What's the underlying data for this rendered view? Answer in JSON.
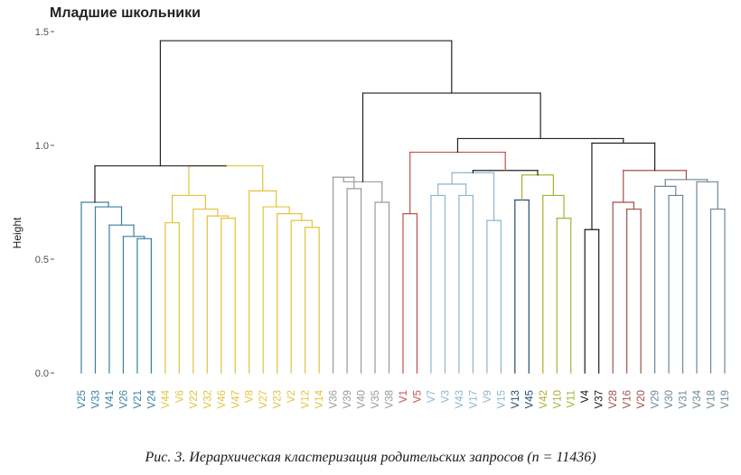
{
  "chart_data": {
    "type": "dendrogram",
    "title": "Младшие школьники",
    "ylabel": "Height",
    "ylim": [
      0,
      1.5
    ],
    "yticks": [
      "0.0",
      "0.5",
      "1.0",
      "1.5"
    ],
    "yticks_values": [
      0,
      0.5,
      1.0,
      1.5
    ],
    "colors": {
      "teal": "#3a7fa0",
      "yellow": "#e3c33b",
      "gray": "#9a9a9a",
      "red": "#c0504d",
      "light_blue": "#8fb6cf",
      "navy": "#1f4e6b",
      "olive": "#aab033",
      "black": "#1a1a1a",
      "brown_red": "#a0504a",
      "slate": "#6e8796",
      "top": "#222222"
    },
    "leaves": [
      {
        "label": "V25",
        "color": "teal"
      },
      {
        "label": "V33",
        "color": "teal"
      },
      {
        "label": "V41",
        "color": "teal"
      },
      {
        "label": "V26",
        "color": "teal"
      },
      {
        "label": "V21",
        "color": "teal"
      },
      {
        "label": "V24",
        "color": "teal"
      },
      {
        "label": "V44",
        "color": "yellow"
      },
      {
        "label": "V6",
        "color": "yellow"
      },
      {
        "label": "V22",
        "color": "yellow"
      },
      {
        "label": "V32",
        "color": "yellow"
      },
      {
        "label": "V46",
        "color": "yellow"
      },
      {
        "label": "V47",
        "color": "yellow"
      },
      {
        "label": "V8",
        "color": "yellow"
      },
      {
        "label": "V27",
        "color": "yellow"
      },
      {
        "label": "V23",
        "color": "yellow"
      },
      {
        "label": "V2",
        "color": "yellow"
      },
      {
        "label": "V12",
        "color": "yellow"
      },
      {
        "label": "V14",
        "color": "yellow"
      },
      {
        "label": "V36",
        "color": "gray"
      },
      {
        "label": "V39",
        "color": "gray"
      },
      {
        "label": "V40",
        "color": "gray"
      },
      {
        "label": "V35",
        "color": "gray"
      },
      {
        "label": "V38",
        "color": "gray"
      },
      {
        "label": "V1",
        "color": "red"
      },
      {
        "label": "V5",
        "color": "red"
      },
      {
        "label": "V7",
        "color": "light_blue"
      },
      {
        "label": "V3",
        "color": "light_blue"
      },
      {
        "label": "V43",
        "color": "light_blue"
      },
      {
        "label": "V17",
        "color": "light_blue"
      },
      {
        "label": "V9",
        "color": "light_blue"
      },
      {
        "label": "V15",
        "color": "light_blue"
      },
      {
        "label": "V13",
        "color": "navy"
      },
      {
        "label": "V45",
        "color": "navy"
      },
      {
        "label": "V42",
        "color": "olive"
      },
      {
        "label": "V10",
        "color": "olive"
      },
      {
        "label": "V11",
        "color": "olive"
      },
      {
        "label": "V4",
        "color": "black"
      },
      {
        "label": "V37",
        "color": "black"
      },
      {
        "label": "V28",
        "color": "brown_red"
      },
      {
        "label": "V16",
        "color": "brown_red"
      },
      {
        "label": "V20",
        "color": "brown_red"
      },
      {
        "label": "V29",
        "color": "slate"
      },
      {
        "label": "V30",
        "color": "slate"
      },
      {
        "label": "V31",
        "color": "slate"
      },
      {
        "label": "V34",
        "color": "slate"
      },
      {
        "label": "V18",
        "color": "slate"
      },
      {
        "label": "V19",
        "color": "slate"
      }
    ],
    "merges": [
      {
        "id": "t1",
        "left": "V21",
        "right": "V24",
        "height": 0.59,
        "color": "teal"
      },
      {
        "id": "t2",
        "left": "V26",
        "right": "t1",
        "height": 0.6,
        "color": "teal"
      },
      {
        "id": "t3",
        "left": "V41",
        "right": "t2",
        "height": 0.65,
        "color": "teal"
      },
      {
        "id": "t4",
        "left": "V33",
        "right": "t3",
        "height": 0.73,
        "color": "teal"
      },
      {
        "id": "t5",
        "left": "V25",
        "right": "t4",
        "height": 0.75,
        "color": "teal"
      },
      {
        "id": "y1",
        "left": "V44",
        "right": "V6",
        "height": 0.66,
        "color": "yellow"
      },
      {
        "id": "y2",
        "left": "V46",
        "right": "V47",
        "height": 0.68,
        "color": "yellow"
      },
      {
        "id": "y3",
        "left": "V32",
        "right": "y2",
        "height": 0.69,
        "color": "yellow"
      },
      {
        "id": "y4",
        "left": "V22",
        "right": "y3",
        "height": 0.72,
        "color": "yellow"
      },
      {
        "id": "y5",
        "left": "y1",
        "right": "y4",
        "height": 0.78,
        "color": "yellow"
      },
      {
        "id": "y6",
        "left": "V12",
        "right": "V14",
        "height": 0.64,
        "color": "yellow"
      },
      {
        "id": "y7",
        "left": "V2",
        "right": "y6",
        "height": 0.67,
        "color": "yellow"
      },
      {
        "id": "y8",
        "left": "V23",
        "right": "y7",
        "height": 0.7,
        "color": "yellow"
      },
      {
        "id": "y9",
        "left": "V27",
        "right": "y8",
        "height": 0.73,
        "color": "yellow"
      },
      {
        "id": "y10",
        "left": "V8",
        "right": "y9",
        "height": 0.8,
        "color": "yellow"
      },
      {
        "id": "y11",
        "left": "y5",
        "right": "y10",
        "height": 0.91,
        "color": "yellow"
      },
      {
        "id": "T1",
        "left": "t5",
        "right": "y11",
        "height": 0.91,
        "color": "top"
      },
      {
        "id": "g1",
        "left": "V39",
        "right": "V40",
        "height": 0.81,
        "color": "gray"
      },
      {
        "id": "g2",
        "left": "V36",
        "right": "g1",
        "height": 0.86,
        "color": "gray"
      },
      {
        "id": "g3",
        "left": "V35",
        "right": "V38",
        "height": 0.75,
        "color": "gray"
      },
      {
        "id": "g4",
        "left": "g2",
        "right": "g3",
        "height": 0.84,
        "color": "gray"
      },
      {
        "id": "r1",
        "left": "V1",
        "right": "V5",
        "height": 0.7,
        "color": "red"
      },
      {
        "id": "b1",
        "left": "V7",
        "right": "V3",
        "height": 0.78,
        "color": "light_blue"
      },
      {
        "id": "b2",
        "left": "V43",
        "right": "V17",
        "height": 0.78,
        "color": "light_blue"
      },
      {
        "id": "b3",
        "left": "V9",
        "right": "V15",
        "height": 0.67,
        "color": "light_blue"
      },
      {
        "id": "b4",
        "left": "b1",
        "right": "b2",
        "height": 0.83,
        "color": "light_blue"
      },
      {
        "id": "b5",
        "left": "b4",
        "right": "b3",
        "height": 0.88,
        "color": "light_blue"
      },
      {
        "id": "n1",
        "left": "V13",
        "right": "V45",
        "height": 0.76,
        "color": "navy"
      },
      {
        "id": "o1",
        "left": "V10",
        "right": "V11",
        "height": 0.68,
        "color": "olive"
      },
      {
        "id": "o2",
        "left": "V42",
        "right": "o1",
        "height": 0.78,
        "color": "olive"
      },
      {
        "id": "o3",
        "left": "n1",
        "right": "o2",
        "height": 0.87,
        "color": "olive"
      },
      {
        "id": "k1",
        "left": "b5",
        "right": "o3",
        "height": 0.89,
        "color": "top"
      },
      {
        "id": "k2",
        "left": "r1",
        "right": "k1",
        "height": 0.97,
        "color": "red"
      },
      {
        "id": "c1",
        "left": "V4",
        "right": "V37",
        "height": 0.63,
        "color": "black"
      },
      {
        "id": "br1",
        "left": "V16",
        "right": "V20",
        "height": 0.72,
        "color": "brown_red"
      },
      {
        "id": "br2",
        "left": "V28",
        "right": "br1",
        "height": 0.75,
        "color": "brown_red"
      },
      {
        "id": "s1",
        "left": "V30",
        "right": "V31",
        "height": 0.78,
        "color": "slate"
      },
      {
        "id": "s2",
        "left": "V29",
        "right": "s1",
        "height": 0.82,
        "color": "slate"
      },
      {
        "id": "s3",
        "left": "V18",
        "right": "V19",
        "height": 0.72,
        "color": "slate"
      },
      {
        "id": "s4",
        "left": "V34",
        "right": "s3",
        "height": 0.84,
        "color": "slate"
      },
      {
        "id": "s5",
        "left": "s2",
        "right": "s4",
        "height": 0.85,
        "color": "slate"
      },
      {
        "id": "s6",
        "left": "br2",
        "right": "s5",
        "height": 0.89,
        "color": "brown_red"
      },
      {
        "id": "K1",
        "left": "c1",
        "right": "s6",
        "height": 1.01,
        "color": "top"
      },
      {
        "id": "K2",
        "left": "k2",
        "right": "K1",
        "height": 1.03,
        "color": "top"
      },
      {
        "id": "K3",
        "left": "g4",
        "right": "K2",
        "height": 1.23,
        "color": "top"
      },
      {
        "id": "ROOT",
        "left": "T1",
        "right": "K3",
        "height": 1.46,
        "color": "top"
      }
    ]
  },
  "caption": "Рис. 3. Иерархическая кластеризация родительских запросов (n = 11436)"
}
